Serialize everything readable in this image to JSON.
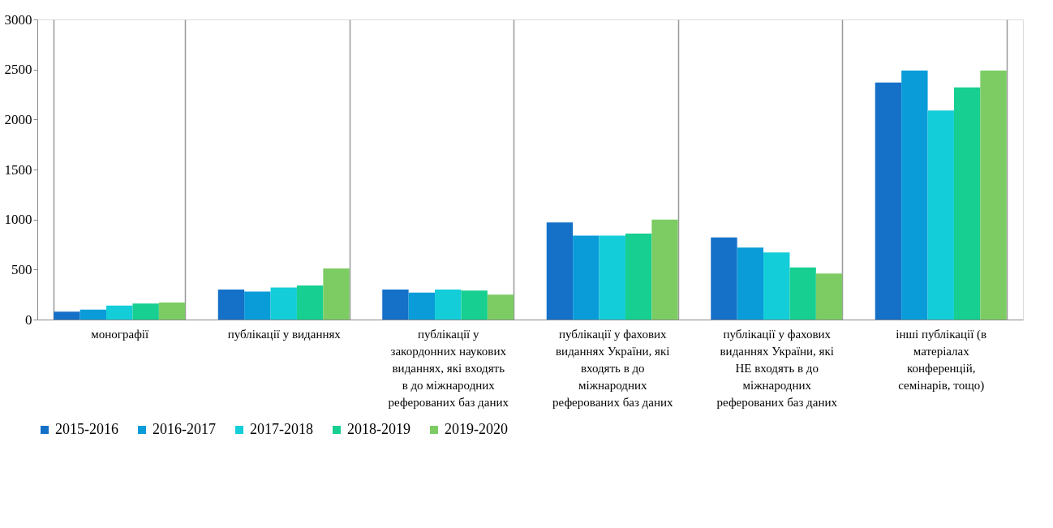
{
  "chart_data": {
    "type": "bar",
    "categories": [
      "монографії",
      "публікації у виданнях",
      "публікації у закордонних наукових виданнях, які входять в до міжнародних реферованих баз даних",
      "публікації у фахових виданнях України, які входять в до міжнародних реферованих баз даних",
      "публікації у фахових виданнях України, які НЕ входять в до міжнародних реферованих баз даних",
      "інші публікації (в матеріалах конференцій, семінарів, тощо)"
    ],
    "series": [
      {
        "name": "2015-2016",
        "color": "#1570c8",
        "values": [
          80,
          300,
          300,
          970,
          820,
          2370
        ]
      },
      {
        "name": "2016-2017",
        "color": "#0a9cd9",
        "values": [
          100,
          280,
          270,
          840,
          720,
          2490
        ]
      },
      {
        "name": "2017-2018",
        "color": "#13cdd9",
        "values": [
          140,
          320,
          300,
          840,
          670,
          2090
        ]
      },
      {
        "name": "2018-2019",
        "color": "#16cf90",
        "values": [
          160,
          340,
          290,
          860,
          520,
          2320
        ]
      },
      {
        "name": "2019-2020",
        "color": "#7ccc63",
        "values": [
          170,
          510,
          250,
          1000,
          460,
          2490
        ]
      }
    ],
    "ylim": [
      0,
      3000
    ],
    "yticks": [
      0,
      500,
      1000,
      1500,
      2000,
      2500,
      3000
    ],
    "grid": "x",
    "legend": "bottom"
  }
}
